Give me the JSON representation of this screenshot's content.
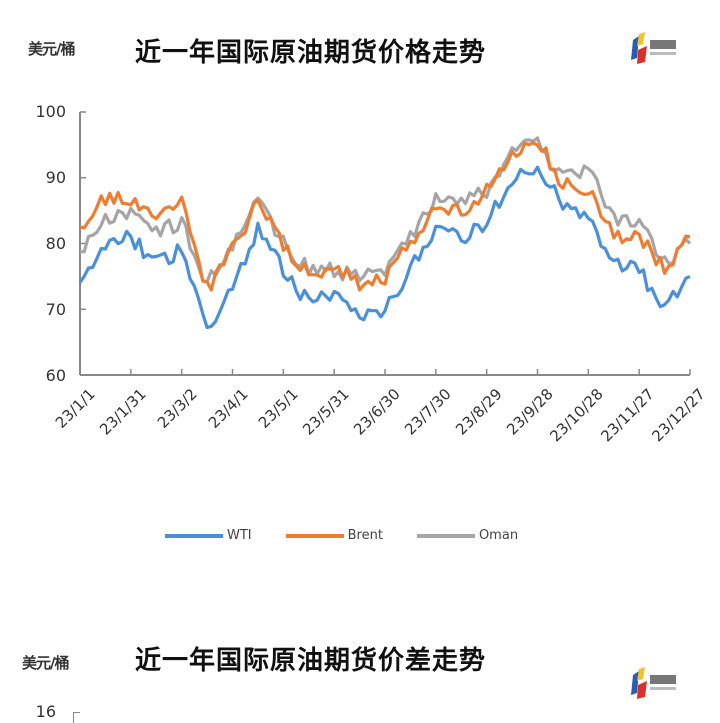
{
  "charts": [
    {
      "unit": "美元/桶",
      "title": "近一年国际原油期货价格走势",
      "logo": "logo-icon"
    },
    {
      "unit": "美元/桶",
      "title": "近一年国际原油期货价差走势",
      "first_ytick": "16",
      "logo": "logo-icon"
    }
  ],
  "colors": {
    "WTI": "#4a90d9",
    "Brent": "#ed7d31",
    "Oman": "#a5a5a5",
    "axis": "#888888"
  },
  "chart_data": [
    {
      "type": "line",
      "title": "近一年国际原油期货价格走势",
      "xlabel": "",
      "ylabel": "美元/桶",
      "ylim": [
        60,
        100
      ],
      "yticks": [
        "100",
        "90",
        "80",
        "70",
        "60"
      ],
      "xticks": [
        "23/1/1",
        "23/1/31",
        "23/3/2",
        "23/4/1",
        "23/5/1",
        "23/5/31",
        "23/6/30",
        "23/7/30",
        "23/8/29",
        "23/9/28",
        "23/10/28",
        "23/11/27",
        "23/12/27"
      ],
      "grid": false,
      "legend_position": "bottom",
      "x": [
        "23/1/1",
        "23/1/15",
        "23/1/31",
        "23/2/15",
        "23/3/2",
        "23/3/16",
        "23/4/1",
        "23/4/15",
        "23/5/1",
        "23/5/15",
        "23/5/31",
        "23/6/15",
        "23/6/30",
        "23/7/15",
        "23/7/30",
        "23/8/15",
        "23/8/29",
        "23/9/15",
        "23/9/28",
        "23/10/15",
        "23/10/28",
        "23/11/15",
        "23/11/27",
        "23/12/15",
        "23/12/27"
      ],
      "series": [
        {
          "name": "WTI",
          "values": [
            73,
            80,
            81,
            77,
            79,
            67,
            73,
            82,
            76,
            71,
            72,
            69,
            70,
            76,
            82,
            81,
            83,
            90,
            91,
            86,
            84,
            77,
            76,
            70,
            75
          ]
        },
        {
          "name": "Brent",
          "values": [
            82,
            87,
            87,
            84,
            86,
            73,
            79,
            86,
            80,
            75,
            77,
            74,
            75,
            80,
            86,
            85,
            88,
            94,
            96,
            89,
            88,
            81,
            81,
            76,
            81
          ]
        },
        {
          "name": "Oman",
          "values": [
            79,
            84,
            85,
            82,
            83,
            74,
            80,
            87,
            80,
            76,
            76,
            75,
            76,
            81,
            87,
            86,
            88,
            94,
            95,
            90,
            91,
            84,
            83,
            77,
            80
          ]
        }
      ]
    }
  ],
  "legend": [
    {
      "label": "WTI"
    },
    {
      "label": "Brent"
    },
    {
      "label": "Oman"
    }
  ]
}
